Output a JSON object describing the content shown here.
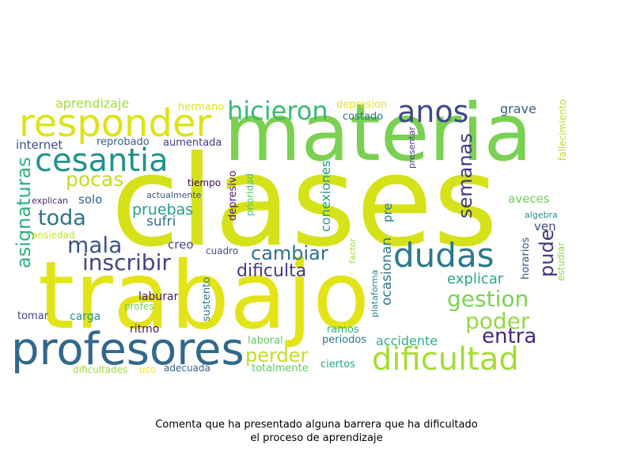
{
  "caption": {
    "line1": "Comenta que ha presentado alguna barrera que ha dificultado",
    "line2": "el proceso de aprendizaje"
  },
  "words": [
    {
      "text": "clases",
      "color": "#d5e21a"
    },
    {
      "text": "trabajo",
      "color": "#e2e418"
    },
    {
      "text": "materia",
      "color": "#7ad151"
    },
    {
      "text": "profesores",
      "color": "#31688e"
    },
    {
      "text": "responder",
      "color": "#dde318"
    },
    {
      "text": "dificultad",
      "color": "#a5db36"
    },
    {
      "text": "dudas",
      "color": "#2a788e"
    },
    {
      "text": "cesantia",
      "color": "#21918c"
    },
    {
      "text": "anos",
      "color": "#3e4a89"
    },
    {
      "text": "hicieron",
      "color": "#3aba76"
    },
    {
      "text": "asignaturas",
      "color": "#2db27d"
    },
    {
      "text": "gestion",
      "color": "#7ad151"
    },
    {
      "text": "poder",
      "color": "#95d840"
    },
    {
      "text": "inscribir",
      "color": "#414487"
    },
    {
      "text": "mala",
      "color": "#3b528b"
    },
    {
      "text": "toda",
      "color": "#2c728e"
    },
    {
      "text": "pocas",
      "color": "#bddf26"
    },
    {
      "text": "perder",
      "color": "#c2df23"
    },
    {
      "text": "cambiar",
      "color": "#2c728e"
    },
    {
      "text": "entra",
      "color": "#482777"
    },
    {
      "text": "semanas",
      "color": "#443983"
    },
    {
      "text": "pude",
      "color": "#46337e"
    },
    {
      "text": "pruebas",
      "color": "#1f9e89"
    },
    {
      "text": "dificulta",
      "color": "#443983"
    },
    {
      "text": "aprendizaje",
      "color": "#a8db34"
    },
    {
      "text": "sufri",
      "color": "#2e6e8e"
    },
    {
      "text": "accidente",
      "color": "#2db27d"
    },
    {
      "text": "explicar",
      "color": "#22a884"
    },
    {
      "text": "ocasionan",
      "color": "#2a788e"
    },
    {
      "text": "conexiones",
      "color": "#1f9a8a"
    },
    {
      "text": "internet",
      "color": "#3e4a89"
    },
    {
      "text": "grave",
      "color": "#35608d"
    },
    {
      "text": "aveces",
      "color": "#6ccd5a"
    },
    {
      "text": "solo",
      "color": "#355f8d"
    },
    {
      "text": "ven",
      "color": "#3e4989"
    },
    {
      "text": "pre",
      "color": "#2a788e"
    },
    {
      "text": "creo",
      "color": "#404588"
    },
    {
      "text": "laburar",
      "color": "#48186a"
    },
    {
      "text": "carga",
      "color": "#21918c"
    },
    {
      "text": "tomar",
      "color": "#3f4788"
    },
    {
      "text": "ritmo",
      "color": "#48186a"
    },
    {
      "text": "costado",
      "color": "#2a788e"
    },
    {
      "text": "depresion",
      "color": "#e5e419"
    },
    {
      "text": "hermano",
      "color": "#d8e219"
    },
    {
      "text": "reprobado",
      "color": "#35608d"
    },
    {
      "text": "aumentada",
      "color": "#443983"
    },
    {
      "text": "periodos",
      "color": "#2a788e"
    },
    {
      "text": "ramos",
      "color": "#29af7f"
    },
    {
      "text": "laboral",
      "color": "#5ec962"
    },
    {
      "text": "totalmente",
      "color": "#5ec962"
    },
    {
      "text": "ciertos",
      "color": "#22a884"
    },
    {
      "text": "adecuada",
      "color": "#355f8d"
    },
    {
      "text": "dificultades",
      "color": "#a0da39"
    },
    {
      "text": "uso",
      "color": "#fde725"
    },
    {
      "text": "profes",
      "color": "#73d056"
    },
    {
      "text": "sustento",
      "color": "#2a788e"
    },
    {
      "text": "cuadro",
      "color": "#3b528b"
    },
    {
      "text": "tiempo",
      "color": "#440154"
    },
    {
      "text": "actualmente",
      "color": "#3b528b"
    },
    {
      "text": "explican",
      "color": "#482878"
    },
    {
      "text": "ansiedad",
      "color": "#c8e020"
    },
    {
      "text": "depresivo",
      "color": "#48186a"
    },
    {
      "text": "prioridad",
      "color": "#54c568"
    },
    {
      "text": "presentar",
      "color": "#433e85"
    },
    {
      "text": "fallecimiento",
      "color": "#b5de2b"
    },
    {
      "text": "algebra",
      "color": "#21918c"
    },
    {
      "text": "horarios",
      "color": "#3b528b"
    },
    {
      "text": "estudiar",
      "color": "#95d840"
    },
    {
      "text": "factor",
      "color": "#9fda3a"
    },
    {
      "text": "plataforma",
      "color": "#25858e"
    }
  ]
}
